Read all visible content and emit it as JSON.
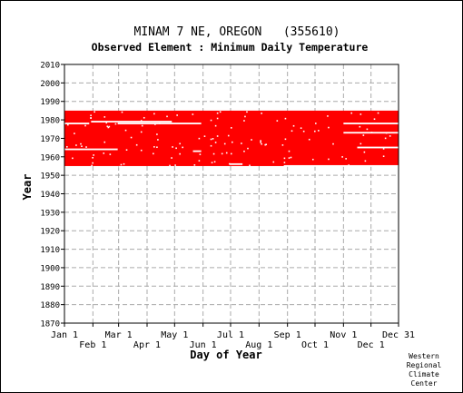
{
  "chart_data": {
    "type": "heatmap",
    "title": "MINAM 7 NE, OREGON   (355610)",
    "subtitle": "Observed Element : Minimum Daily Temperature",
    "xlabel": "Day of Year",
    "ylabel": "Year",
    "xlim": [
      "Jan 1",
      "Dec 31"
    ],
    "ylim": [
      1870,
      2010
    ],
    "x_ticks_top_row": [
      "Jan 1",
      "Mar 1",
      "May 1",
      "Jul 1",
      "Sep 1",
      "Nov 1",
      "Dec 31"
    ],
    "x_ticks_bottom_row": [
      "Feb 1",
      "Apr 1",
      "Jun 1",
      "Aug 1",
      "Oct 1",
      "Dec 1"
    ],
    "y_ticks": [
      "1870",
      "1880",
      "1890",
      "1900",
      "1910",
      "1920",
      "1930",
      "1940",
      "1950",
      "1960",
      "1970",
      "1980",
      "1990",
      "2000",
      "2010"
    ],
    "grid": true,
    "series": [
      {
        "color": "#ff0000",
        "year_range": [
          1955,
          1985
        ],
        "day_range": [
          1,
          365
        ]
      }
    ],
    "gaps": [
      {
        "year": 1978,
        "day_range": [
          1,
          28
        ]
      },
      {
        "year": 1979,
        "day_range": [
          30,
          118
        ]
      },
      {
        "year": 1978,
        "day_range": [
          59,
          150
        ]
      },
      {
        "year": 1964,
        "day_range": [
          1,
          59
        ]
      },
      {
        "year": 1956,
        "day_range": [
          181,
          195
        ]
      },
      {
        "year": 1955,
        "day_range": [
          240,
          365
        ]
      },
      {
        "year": 1978,
        "day_range": [
          305,
          365
        ]
      },
      {
        "year": 1973,
        "day_range": [
          305,
          365
        ]
      },
      {
        "year": 1965,
        "day_range": [
          320,
          365
        ]
      },
      {
        "year": 1963,
        "day_range": [
          141,
          150
        ]
      }
    ]
  },
  "credit": [
    "Western",
    "Regional",
    "Climate",
    "Center"
  ]
}
